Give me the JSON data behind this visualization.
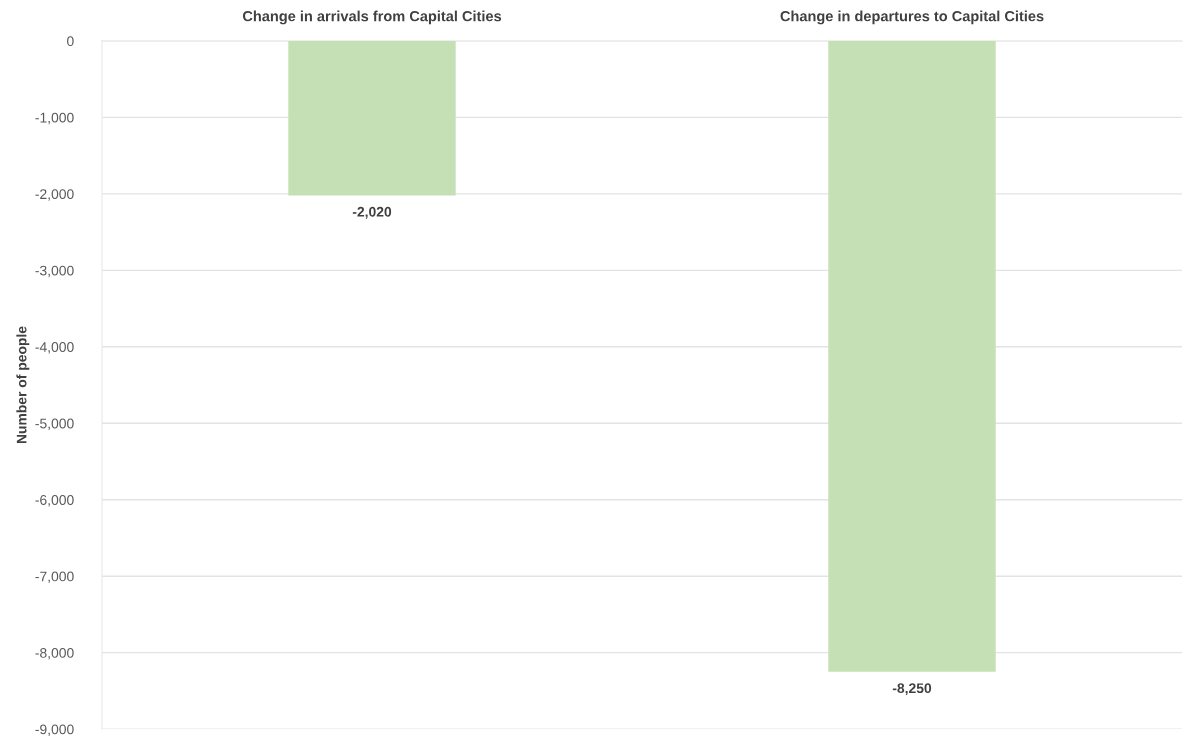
{
  "chart_data": {
    "type": "bar",
    "ylabel": "Number of people",
    "categories": [
      "Change in arrivals from Capital Cities",
      "Change in departures to Capital Cities"
    ],
    "values": [
      -2020,
      -8250
    ],
    "color": "#c5e0b4",
    "value_labels": [
      "-2,020",
      "-8,250"
    ],
    "ylim": [
      -9000,
      0
    ],
    "yticks": [
      0,
      {
        "value": -1000,
        "label": "-1,000"
      },
      {
        "value": -2000,
        "label": "-2,000"
      },
      {
        "value": -3000,
        "label": "-3,000"
      },
      {
        "value": -4000,
        "label": "-4,000"
      },
      {
        "value": -5000,
        "label": "-5,000"
      },
      {
        "value": -6000,
        "label": "-6,000"
      },
      {
        "value": -7000,
        "label": "-7,000"
      },
      {
        "value": -8000,
        "label": "-8,000"
      },
      {
        "value": -9000,
        "label": "-9,000"
      }
    ],
    "grid": "y",
    "legend": false
  }
}
